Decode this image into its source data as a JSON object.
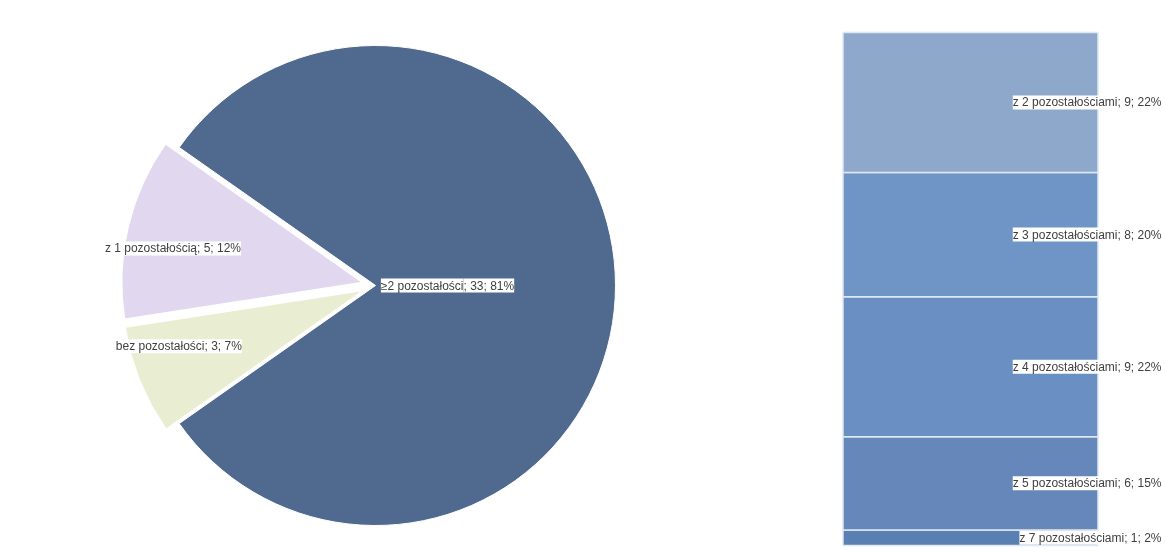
{
  "chart_data": [
    {
      "type": "pie",
      "categories": [
        "≥2 pozostałości",
        "z 1 pozostałością",
        "bez pozostałości"
      ],
      "values": [
        33,
        5,
        3
      ],
      "colors": [
        "#50698e",
        "#e1d8f0",
        "#e9edd2"
      ],
      "value_labels": [
        "; 33; 81%",
        "; 5; 12%",
        "; 3; 7%"
      ]
    },
    {
      "type": "bar",
      "stacked": true,
      "categories": [
        null
      ],
      "series": [
        {
          "color": "#5a7fb2",
          "values": [
            1
          ],
          "value_labels": [
            "z 7 pozostałościami; 1; 2%"
          ]
        },
        {
          "color": "#6587b9",
          "values": [
            6
          ],
          "value_labels": [
            "z 5 pozostałościami; 6; 15%"
          ]
        },
        {
          "color": "#6a8fc2",
          "values": [
            9
          ],
          "value_labels": [
            "z 4 pozostałościami; 9; 22%"
          ]
        },
        {
          "color": "#6e95c6",
          "values": [
            8
          ],
          "value_labels": [
            "z 3 pozostałościami; 8; 20%"
          ]
        },
        {
          "color": "#8ea8cc",
          "values": [
            9
          ],
          "value_labels": [
            "z 2 pozostałościami; 9; 22%"
          ]
        }
      ]
    }
  ]
}
